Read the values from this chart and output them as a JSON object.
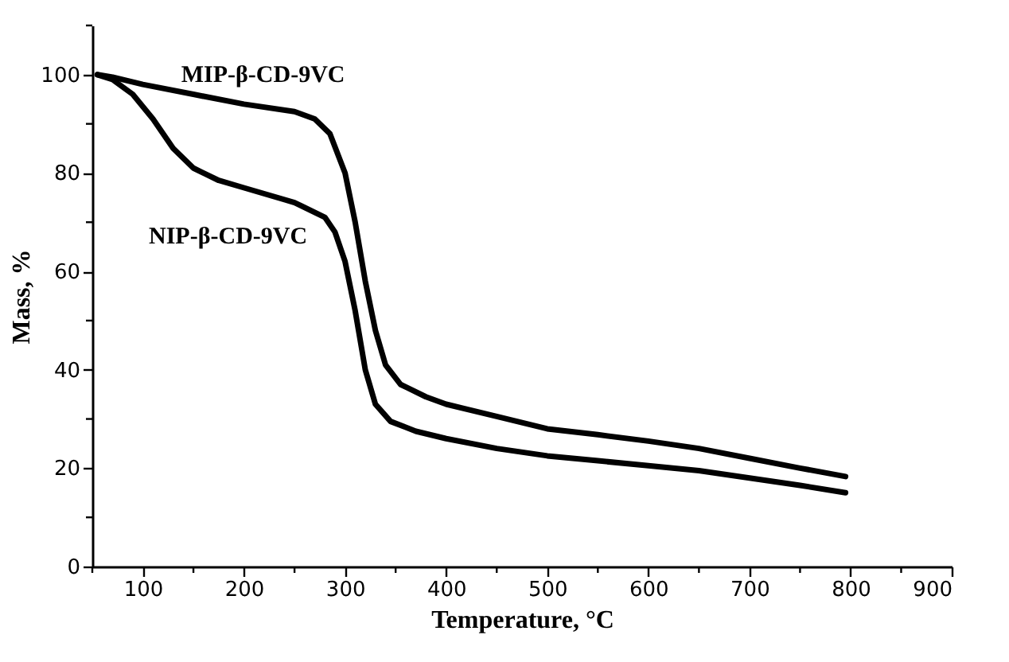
{
  "chart_data": {
    "type": "line",
    "xlabel": "Temperature, °C",
    "ylabel": "Mass, %",
    "xlim": [
      50,
      900
    ],
    "ylim": [
      0,
      110
    ],
    "xticks": [
      {
        "value": 50,
        "label": null
      },
      100,
      {
        "value": 150,
        "label": null
      },
      200,
      {
        "value": 250,
        "label": null
      },
      300,
      {
        "value": 350,
        "label": null
      },
      400,
      {
        "value": 450,
        "label": null
      },
      500,
      {
        "value": 550,
        "label": null
      },
      600,
      {
        "value": 650,
        "label": null
      },
      700,
      {
        "value": 750,
        "label": null
      },
      800,
      {
        "value": 850,
        "label": null
      },
      900
    ],
    "yticks": [
      0,
      {
        "value": 10,
        "label": null
      },
      20,
      {
        "value": 30,
        "label": null
      },
      40,
      {
        "value": 50,
        "label": null
      },
      60,
      {
        "value": 70,
        "label": null
      },
      80,
      {
        "value": 90,
        "label": null
      },
      100,
      {
        "value": 110,
        "label": null
      }
    ],
    "grid": false,
    "marker": "none",
    "line_style": "solid",
    "series": [
      {
        "name": "MIP-β-CD-9VC",
        "color": "#000000",
        "x": [
          55,
          70,
          100,
          150,
          200,
          250,
          270,
          285,
          300,
          310,
          320,
          330,
          340,
          355,
          380,
          400,
          450,
          500,
          550,
          600,
          650,
          700,
          750,
          795
        ],
        "values": [
          100,
          99.5,
          98,
          96,
          94,
          92.5,
          91,
          88,
          80,
          70,
          58,
          48,
          41,
          37,
          34.5,
          33,
          30.5,
          28,
          26.8,
          25.5,
          24,
          22,
          20,
          18.3
        ]
      },
      {
        "name": "NIP-β-CD-9VC",
        "color": "#000000",
        "x": [
          55,
          70,
          90,
          110,
          130,
          150,
          175,
          200,
          250,
          280,
          290,
          300,
          310,
          320,
          330,
          345,
          370,
          400,
          450,
          500,
          550,
          600,
          650,
          700,
          750,
          795
        ],
        "values": [
          100,
          99,
          96,
          91,
          85,
          81,
          78.5,
          77,
          74,
          71,
          68,
          62,
          52,
          40,
          33,
          29.5,
          27.5,
          26,
          24,
          22.5,
          21.5,
          20.5,
          19.5,
          18,
          16.5,
          15
        ]
      }
    ]
  }
}
